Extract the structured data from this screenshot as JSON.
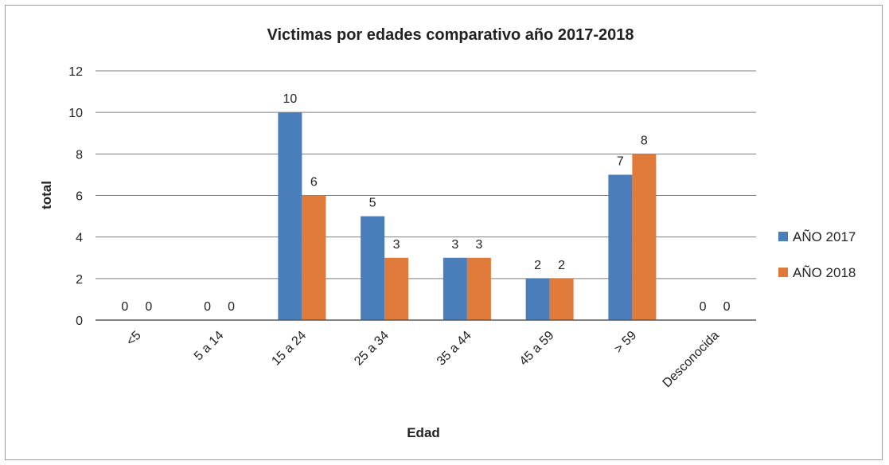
{
  "chart_data": {
    "type": "bar",
    "title": "Victimas por edades comparativo año 2017-2018",
    "xlabel": "Edad",
    "ylabel": "total",
    "categories": [
      "<5",
      "5 a 14",
      "15 a 24",
      "25 a 34",
      "35 a 44",
      "45 a 59",
      "> 59",
      "Desconocida"
    ],
    "series": [
      {
        "name": "AÑO 2017",
        "color": "#4A7EBB",
        "values": [
          0,
          0,
          10,
          5,
          3,
          2,
          7,
          0
        ]
      },
      {
        "name": "AÑO 2018",
        "color": "#E07A3A",
        "values": [
          0,
          0,
          6,
          3,
          3,
          2,
          8,
          0
        ]
      }
    ],
    "ylim": [
      0,
      12
    ],
    "yticks": [
      0,
      2,
      4,
      6,
      8,
      10,
      12
    ],
    "grid": true,
    "legend_position": "right",
    "data_labels": true
  }
}
